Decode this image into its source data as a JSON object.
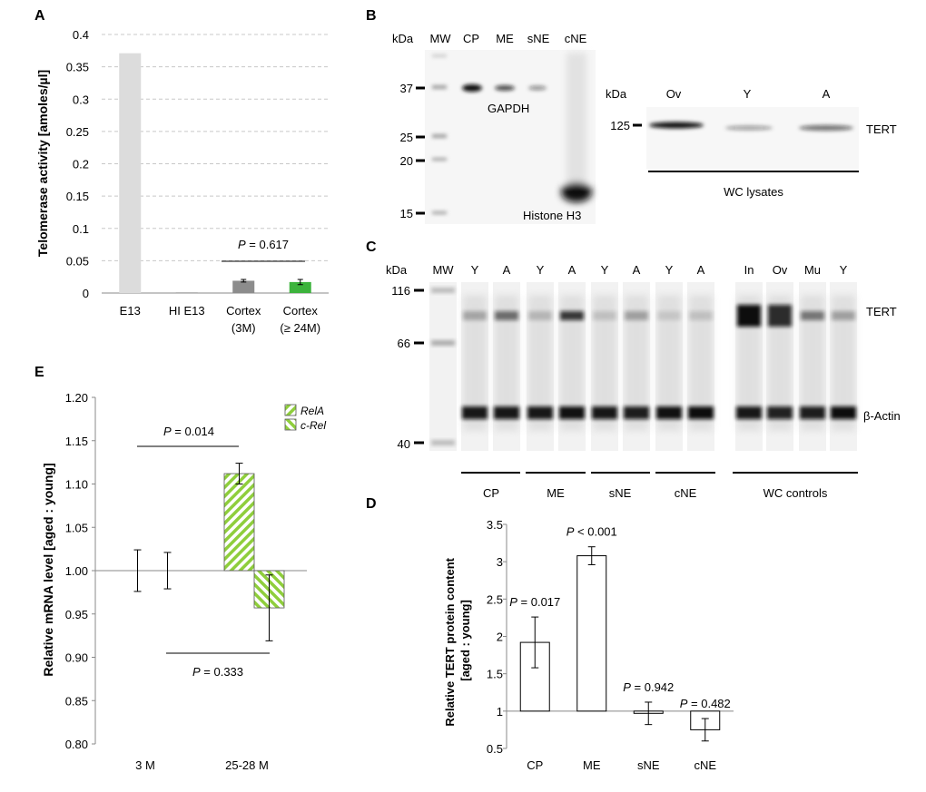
{
  "panels": {
    "A": {
      "letter": "A"
    },
    "B": {
      "letter": "B"
    },
    "C": {
      "letter": "C"
    },
    "D": {
      "letter": "D"
    },
    "E": {
      "letter": "E"
    }
  },
  "colors": {
    "bar_light_gray": "#dcdcdc",
    "bar_gray": "#8c8c8c",
    "bar_green": "#3cb33c",
    "hatch_green": "#8fce3c",
    "blot_band": "#111111",
    "grid": "#c8c8c8"
  },
  "chart_data": [
    {
      "panel": "A",
      "type": "bar",
      "ylabel": "Telomerase activity [amoles/µl]",
      "categories": [
        [
          "E13"
        ],
        [
          "HI E13"
        ],
        [
          "Cortex",
          "(3M)"
        ],
        [
          "Cortex",
          "(≥ 24M)"
        ]
      ],
      "values": [
        0.371,
        0.001,
        0.019,
        0.017
      ],
      "errors": [
        0.0,
        0.0,
        0.002,
        0.004
      ],
      "colors": [
        "#dcdcdc",
        "#9a9a9a",
        "#8c8c8c",
        "#3cb33c"
      ],
      "ylim": [
        0,
        0.4
      ],
      "yticks": [
        "0",
        "0.05",
        "0.1",
        "0.15",
        "0.2",
        "0.25",
        "0.3",
        "0.35",
        "0.4"
      ],
      "grid": true,
      "annotation": {
        "p": "P",
        "text": " = 0.617"
      }
    },
    {
      "panel": "D",
      "type": "bar",
      "ylabel_lines": [
        "Relative TERT protein content",
        "[aged : young]"
      ],
      "categories": [
        "CP",
        "ME",
        "sNE",
        "cNE"
      ],
      "values": [
        1.92,
        3.08,
        0.97,
        0.75
      ],
      "errors": [
        0.34,
        0.12,
        0.15,
        0.15
      ],
      "ylim": [
        0.5,
        3.5
      ],
      "yticks": [
        "0.5",
        "1",
        "1.5",
        "2",
        "2.5",
        "3",
        "3.5"
      ],
      "baseline": 1,
      "annotations": [
        {
          "p": "P",
          "text": " = 0.017"
        },
        {
          "p": "P",
          "text": "  < 0.001"
        },
        {
          "p": "P",
          "text": " = 0.942"
        },
        {
          "p": "P",
          "text": " = 0.482"
        }
      ]
    },
    {
      "panel": "E",
      "type": "bar",
      "ylabel": "Relative mRNA level [aged : young]",
      "categories": [
        "3 M",
        "25-28 M"
      ],
      "series": [
        {
          "name": "RelA",
          "values": [
            1.0,
            1.112
          ],
          "errors": [
            0.024,
            0.012
          ]
        },
        {
          "name": "c-Rel",
          "values": [
            1.0,
            0.957
          ],
          "errors": [
            0.021,
            0.038
          ]
        }
      ],
      "ylim": [
        0.8,
        1.2
      ],
      "yticks": [
        "0.80",
        "0.85",
        "0.90",
        "0.95",
        "1.00",
        "1.05",
        "1.10",
        "1.15",
        "1.20"
      ],
      "baseline": 1.0,
      "annotations": [
        {
          "p": "P",
          "text": " = 0.014"
        },
        {
          "p": "P",
          "text": "  = 0.333"
        }
      ]
    }
  ],
  "blot_B": {
    "kda": "kDa",
    "lanes": [
      "MW",
      "CP",
      "ME",
      "sNE",
      "cNE"
    ],
    "markers": [
      "37",
      "25",
      "20",
      "15"
    ],
    "band_labels": [
      "GAPDH",
      "Histone H3"
    ],
    "right": {
      "kda": "kDa",
      "lanes": [
        "Ov",
        "Y",
        "A"
      ],
      "marker": "125",
      "band_label": "TERT",
      "group_label": "WC  lysates"
    }
  },
  "blot_C": {
    "kda": "kDa",
    "lanes": [
      "MW",
      "Y",
      "A",
      "Y",
      "A",
      "Y",
      "A",
      "Y",
      "A",
      "In",
      "Ov",
      "Mu",
      "Y"
    ],
    "markers": [
      "116",
      "66",
      "40"
    ],
    "band_labels": [
      "TERT",
      "β-Actin"
    ],
    "groups": [
      "CP",
      "ME",
      "sNE",
      "cNE",
      "WC controls"
    ]
  }
}
